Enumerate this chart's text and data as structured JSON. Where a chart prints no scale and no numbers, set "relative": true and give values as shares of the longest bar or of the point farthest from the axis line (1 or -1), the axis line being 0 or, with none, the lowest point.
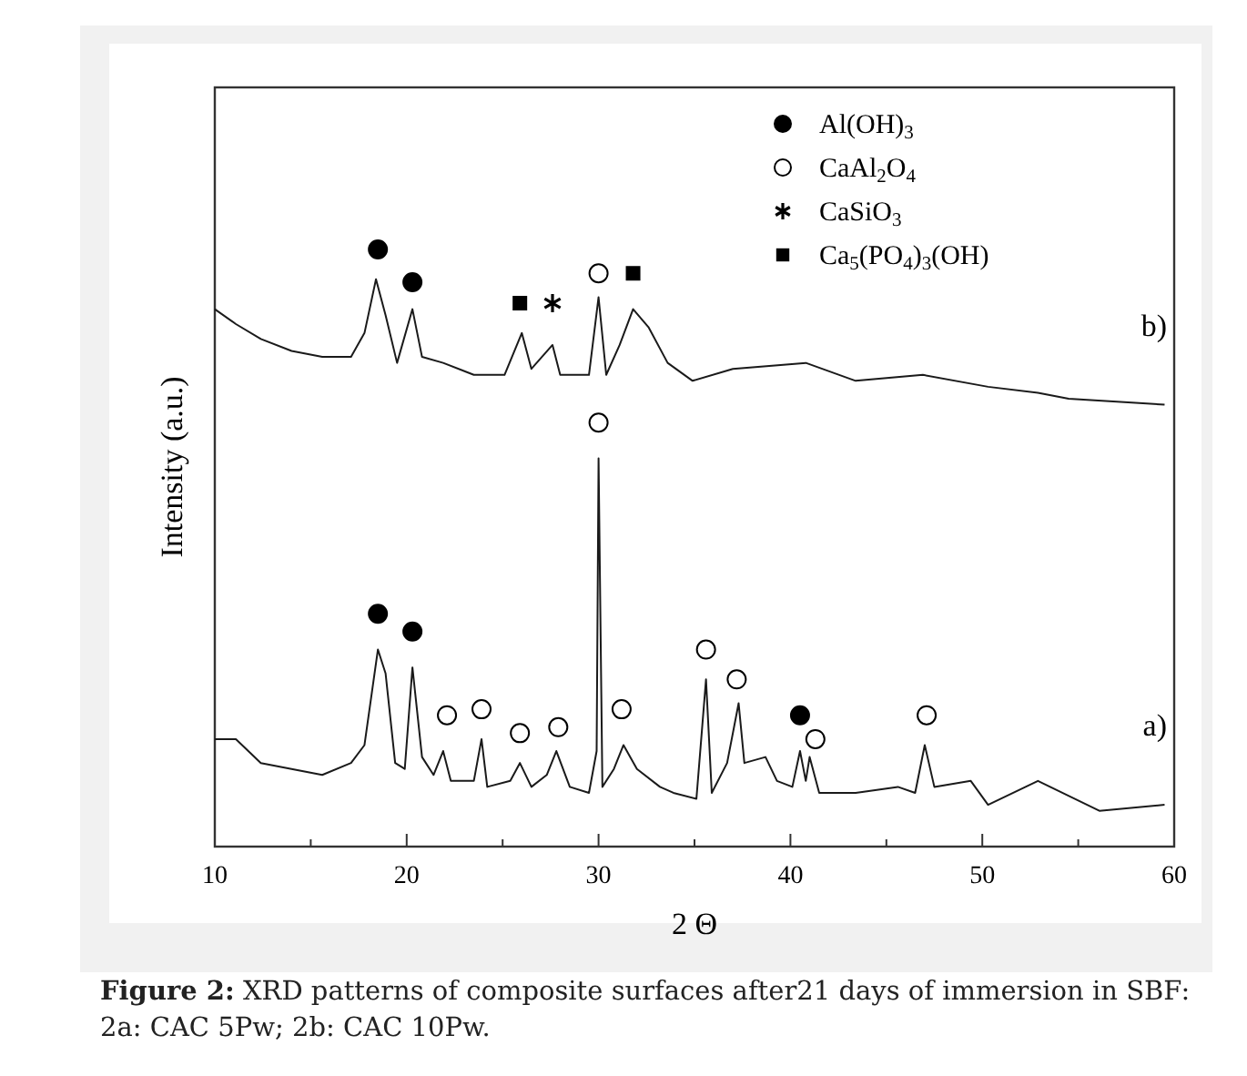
{
  "chart_data": {
    "type": "line",
    "relative": true,
    "xlabel": "2 Θ",
    "ylabel": "Intensity (a.u.)",
    "xlim": [
      10,
      60
    ],
    "xticks": [
      10,
      {
        "value": 15,
        "label": null
      },
      20,
      {
        "value": 25,
        "label": null
      },
      30,
      {
        "value": 35,
        "label": null
      },
      40,
      {
        "value": 45,
        "label": null
      },
      50,
      {
        "value": 55,
        "label": null
      },
      60
    ],
    "legend": "top right",
    "grid": false,
    "line_style": "solid",
    "annotations": [
      "Figure 2: XRD patterns of composite surfaces after21 days of immersion in SBF: 2a: CAC 5Pw; 2b: CAC 10Pw."
    ],
    "series": [
      {
        "name": "b)",
        "color": "#1a1a1a",
        "x": [
          10,
          11.1,
          12.4,
          14.0,
          15.6,
          17.1,
          17.8,
          18.4,
          18.9,
          19.5,
          20.3,
          20.8,
          21.9,
          23.5,
          25.1,
          26.0,
          26.5,
          27.6,
          28.0,
          29.5,
          30.0,
          30.4,
          31.1,
          31.8,
          32.6,
          33.6,
          34.9,
          37.0,
          40.8,
          43.4,
          46.9,
          50.3,
          52.9,
          54.5,
          59.5
        ],
        "values": [
          0.9,
          0.875,
          0.85,
          0.83,
          0.82,
          0.82,
          0.86,
          0.95,
          0.89,
          0.81,
          0.9,
          0.82,
          0.81,
          0.79,
          0.79,
          0.86,
          0.8,
          0.84,
          0.79,
          0.79,
          0.92,
          0.79,
          0.84,
          0.9,
          0.87,
          0.81,
          0.78,
          0.8,
          0.81,
          0.78,
          0.79,
          0.77,
          0.76,
          0.75,
          0.74
        ]
      },
      {
        "name": "a)",
        "color": "#1a1a1a",
        "x": [
          10,
          11.1,
          12.4,
          14.0,
          15.6,
          17.1,
          17.8,
          18.5,
          18.9,
          19.4,
          19.9,
          20.3,
          20.8,
          21.4,
          21.9,
          22.3,
          23.5,
          23.9,
          24.2,
          25.4,
          25.9,
          26.5,
          27.3,
          27.8,
          28.5,
          29.5,
          29.9,
          30.0,
          30.2,
          30.8,
          31.3,
          32.0,
          33.2,
          33.9,
          35.1,
          35.4,
          35.6,
          35.9,
          36.7,
          37.3,
          37.6,
          38.7,
          39.3,
          40.1,
          40.5,
          40.8,
          41.0,
          41.5,
          43.4,
          45.6,
          46.5,
          47.0,
          47.5,
          49.4,
          50.3,
          52.9,
          56.1,
          59.5
        ],
        "values": [
          0.18,
          0.18,
          0.14,
          0.13,
          0.12,
          0.14,
          0.17,
          0.33,
          0.29,
          0.14,
          0.13,
          0.3,
          0.15,
          0.12,
          0.16,
          0.11,
          0.11,
          0.18,
          0.1,
          0.11,
          0.14,
          0.1,
          0.12,
          0.16,
          0.1,
          0.09,
          0.16,
          0.65,
          0.1,
          0.13,
          0.17,
          0.13,
          0.1,
          0.09,
          0.08,
          0.2,
          0.28,
          0.09,
          0.14,
          0.24,
          0.14,
          0.15,
          0.11,
          0.1,
          0.16,
          0.11,
          0.15,
          0.09,
          0.09,
          0.1,
          0.09,
          0.17,
          0.1,
          0.11,
          0.07,
          0.11,
          0.06,
          0.07
        ]
      },
      {
        "name": "Al(OH)$_{3}$",
        "type": "scatter",
        "marker": "circle",
        "color": "#000000",
        "x": [
          18.5,
          20.3,
          18.5,
          20.3,
          40.5
        ],
        "values": [
          1.0,
          0.945,
          0.39,
          0.36,
          0.22
        ]
      },
      {
        "name": "CaAl$_{2}$O$_{4}$",
        "type": "scatter",
        "marker": "circle",
        "color": "#ffffff",
        "x": [
          30.0,
          22.1,
          23.9,
          25.9,
          27.9,
          30.0,
          31.2,
          35.6,
          37.2,
          41.3,
          47.1
        ],
        "values": [
          0.96,
          0.22,
          0.23,
          0.19,
          0.2,
          0.71,
          0.23,
          0.33,
          0.28,
          0.18,
          0.22
        ]
      },
      {
        "name": "CaSiO$_{3}$",
        "type": "scatter",
        "marker": "cross",
        "color": "#000000",
        "x": [
          27.6
        ],
        "values": [
          0.91
        ]
      },
      {
        "name": "Ca$_{5}$(PO$_{4}$)$_{3}$(OH)",
        "type": "scatter",
        "marker": "square",
        "color": "#000000",
        "x": [
          25.9,
          31.8
        ],
        "values": [
          0.91,
          0.96
        ]
      }
    ]
  }
}
